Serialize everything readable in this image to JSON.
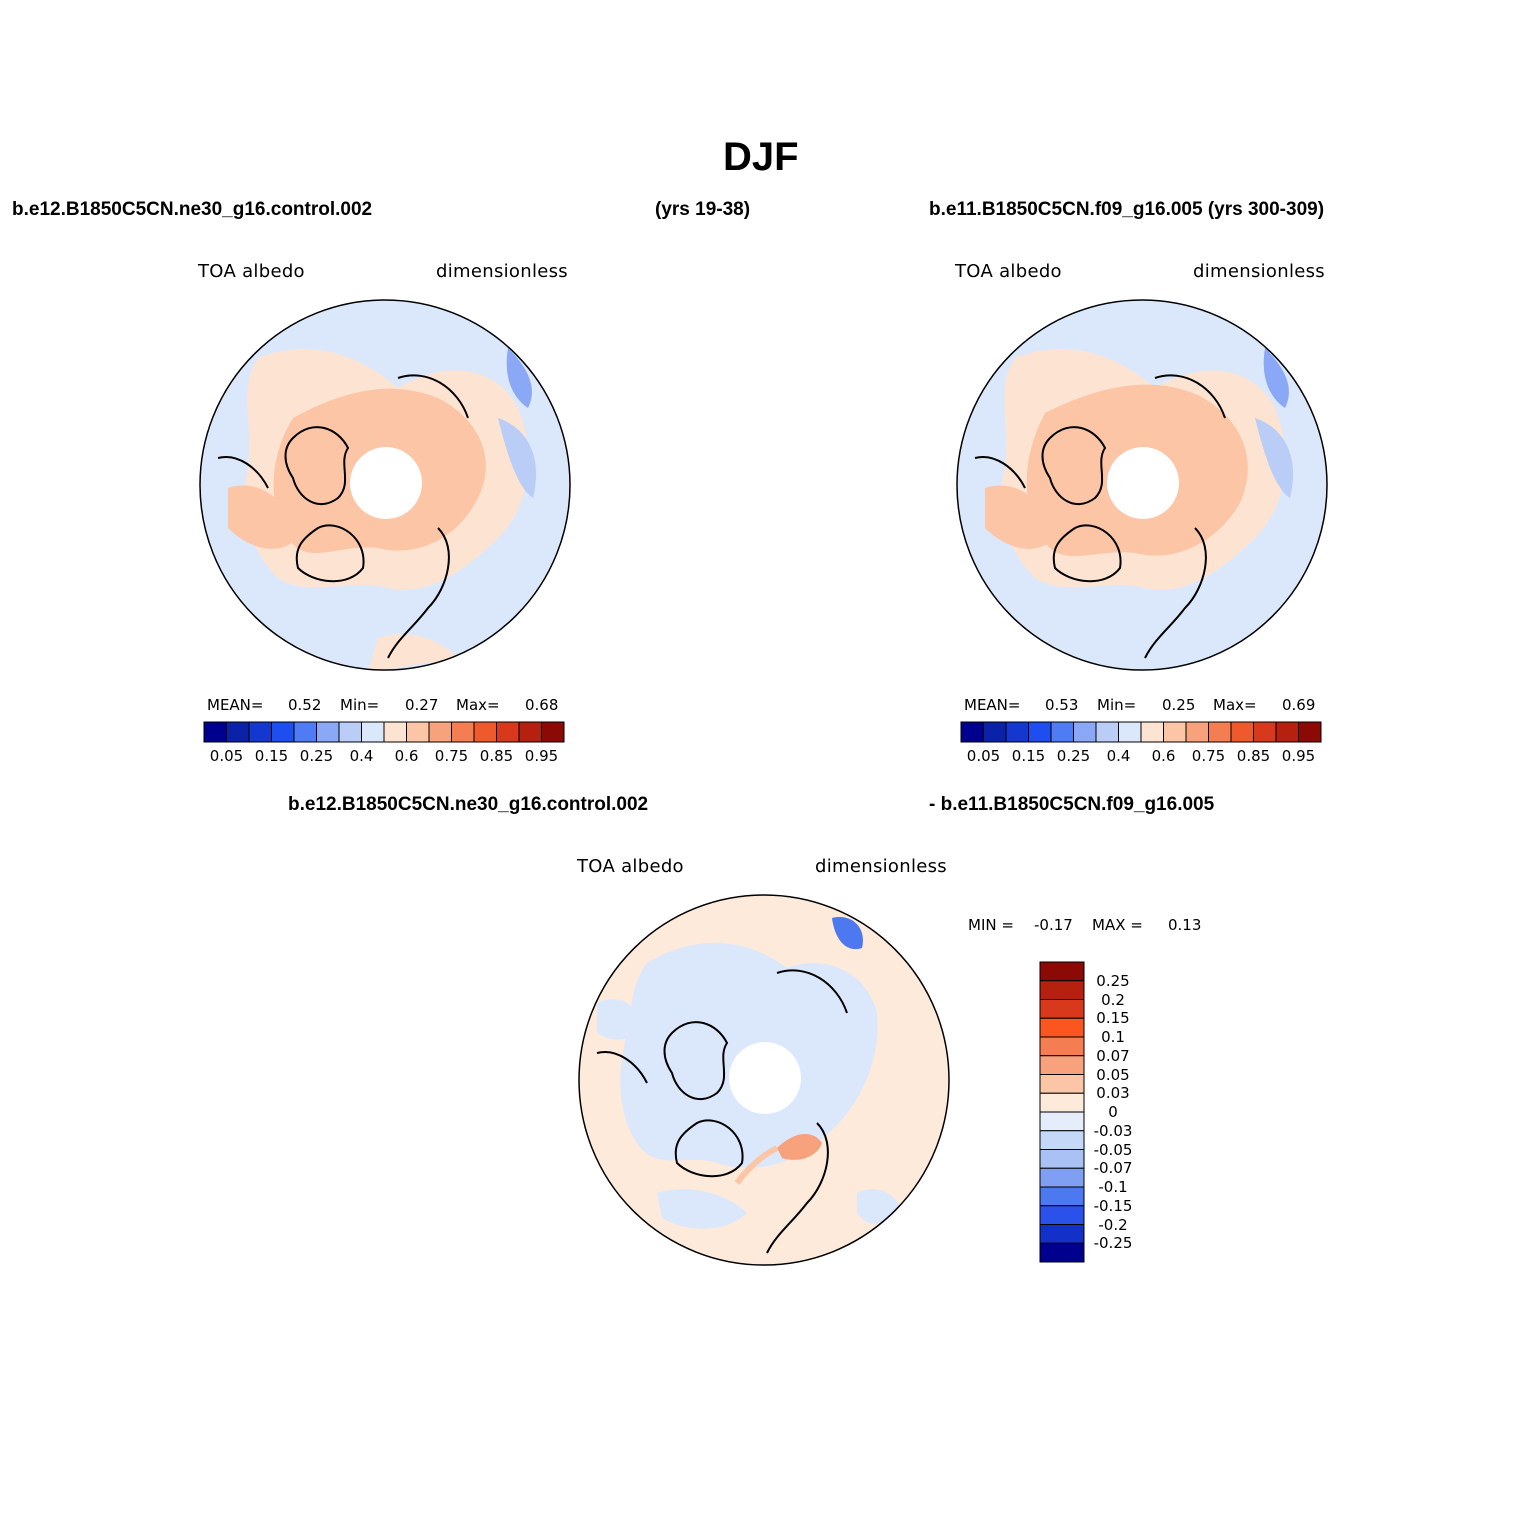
{
  "title": "DJF",
  "case_left": "b.e12.B1850C5CN.ne30_g16.control.002",
  "years_left": "(yrs 19-38)",
  "case_right": "b.e11.B1850C5CN.f09_g16.005 (yrs 300-309)",
  "diff_case_left": "b.e12.B1850C5CN.ne30_g16.control.002",
  "diff_case_right": "- b.e11.B1850C5CN.f09_g16.005",
  "panels": [
    {
      "variable": "TOA albedo",
      "units": "dimensionless",
      "mean_label": "MEAN=",
      "mean": "0.52",
      "min_label": "Min=",
      "min": "0.27",
      "max_label": "Max=",
      "max": "0.68"
    },
    {
      "variable": "TOA albedo",
      "units": "dimensionless",
      "mean_label": "MEAN=",
      "mean": "0.53",
      "min_label": "Min=",
      "min": "0.25",
      "max_label": "Max=",
      "max": "0.69"
    }
  ],
  "diff_panel": {
    "variable": "TOA albedo",
    "units": "dimensionless",
    "min_label": "MIN =",
    "min": "-0.17",
    "max_label": "MAX =",
    "max": "0.13"
  },
  "colorbar_main": {
    "colors": [
      "#00008f",
      "#0a22a8",
      "#1437d0",
      "#1f4ef0",
      "#4f7cf5",
      "#8aa8f5",
      "#b9cdf7",
      "#dbe8fb",
      "#fde4d2",
      "#fcc5a6",
      "#f7a27c",
      "#f47d52",
      "#ee5a2c",
      "#d8381b",
      "#b5200f",
      "#8b0a05"
    ],
    "labels": [
      "0.05",
      "0.15",
      "0.25",
      "0.4",
      "0.6",
      "0.75",
      "0.85",
      "0.95"
    ]
  },
  "colorbar_diff": {
    "colors": [
      "#8b0a05",
      "#b5200f",
      "#d8381b",
      "#fb5520",
      "#f47d52",
      "#f7a27c",
      "#fcc5a6",
      "#fdeadb",
      "#e4edf9",
      "#c6d8f7",
      "#a9c1f5",
      "#7fa0f2",
      "#4d79f0",
      "#2a52ea",
      "#1330c8",
      "#00008f"
    ],
    "labels": [
      "0.25",
      "0.2",
      "0.15",
      "0.1",
      "0.07",
      "0.05",
      "0.03",
      "0",
      "-0.03",
      "-0.05",
      "-0.07",
      "-0.1",
      "-0.15",
      "-0.2",
      "-0.25"
    ]
  }
}
